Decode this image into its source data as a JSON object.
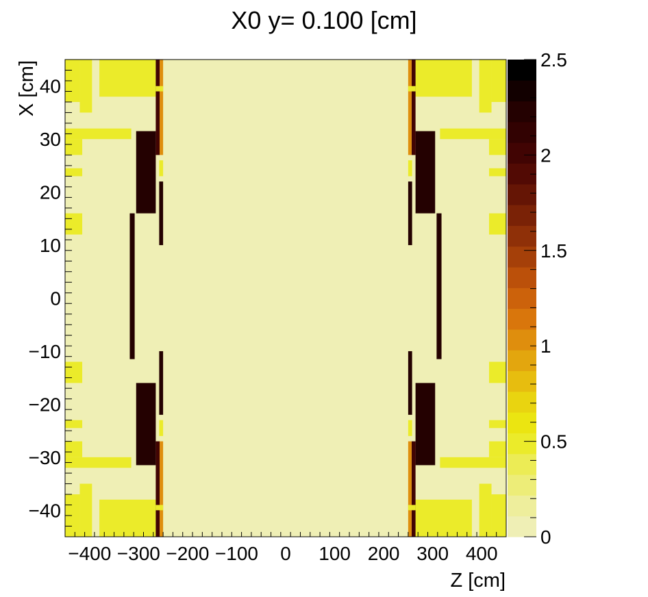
{
  "chart_data": {
    "type": "heatmap",
    "title": "X0 y=  0.100 [cm]",
    "xlabel": "Z [cm]",
    "ylabel": "X [cm]",
    "xlim": [
      -450,
      450
    ],
    "ylim": [
      -45,
      45
    ],
    "x_ticks": [
      -400,
      -300,
      -200,
      -100,
      0,
      100,
      200,
      300,
      400
    ],
    "x_tick_labels": [
      "−400",
      "−300",
      "−200",
      "−100",
      "0",
      "100",
      "200",
      "300",
      "400"
    ],
    "y_ticks": [
      -40,
      -30,
      -20,
      -10,
      0,
      10,
      20,
      30,
      40
    ],
    "y_tick_labels": [
      "−40",
      "−30",
      "−20",
      "−10",
      "0",
      "10",
      "20",
      "30",
      "40"
    ],
    "z_range": [
      0,
      2.5
    ],
    "z_ticks": [
      0,
      0.5,
      1,
      1.5,
      2,
      2.5
    ],
    "z_tick_labels": [
      "0",
      "0.5",
      "1",
      "1.5",
      "2",
      "2.5"
    ],
    "palette": [
      "#efefb5",
      "#eeee9c",
      "#eded78",
      "#ecec55",
      "#ebeb2a",
      "#ebe511",
      "#e9d410",
      "#e7bd0f",
      "#e3a60e",
      "#df8e0d",
      "#d9760c",
      "#cc620b",
      "#bb500a",
      "#a54009",
      "#8f3008",
      "#7a2206",
      "#651505",
      "#520a04",
      "#410403",
      "#320202",
      "#240101",
      "#120000",
      "#000000"
    ],
    "background_value": 0.1,
    "regions": [
      {
        "z": [
          -450,
          -420
        ],
        "x": [
          37,
          45
        ],
        "v": 0.45
      },
      {
        "z": [
          -420,
          -395
        ],
        "x": [
          35,
          45
        ],
        "v": 0.45
      },
      {
        "z": [
          -380,
          -265
        ],
        "x": [
          38,
          45
        ],
        "v": 0.45
      },
      {
        "z": [
          -450,
          -315
        ],
        "x": [
          30,
          32
        ],
        "v": 0.45
      },
      {
        "z": [
          -450,
          -415
        ],
        "x": [
          27,
          30
        ],
        "v": 0.45
      },
      {
        "z": [
          -450,
          -415
        ],
        "x": [
          23,
          24.5
        ],
        "v": 0.45
      },
      {
        "z": [
          -450,
          -415
        ],
        "x": [
          12,
          16
        ],
        "v": 0.45
      },
      {
        "z": [
          -305,
          -265
        ],
        "x": [
          16,
          31.5
        ],
        "v": 2.25
      },
      {
        "z": [
          -318,
          -308
        ],
        "x": [
          -11.5,
          16
        ],
        "v": 2.2
      },
      {
        "z": [
          -265,
          -257
        ],
        "x": [
          27,
          45
        ],
        "v": 2.0
      },
      {
        "z": [
          -257,
          -250
        ],
        "x": [
          27,
          45
        ],
        "v": 1.0
      },
      {
        "z": [
          -265,
          -250
        ],
        "x": [
          39,
          40
        ],
        "v": 0.5
      },
      {
        "z": [
          -258,
          -250
        ],
        "x": [
          10,
          22
        ],
        "v": 2.2
      },
      {
        "z": [
          -258,
          -250
        ],
        "x": [
          23,
          26
        ],
        "v": 0.45
      },
      {
        "z": [
          -450,
          -315
        ],
        "x": [
          -32,
          -30
        ],
        "v": 0.45
      },
      {
        "z": [
          -450,
          -415
        ],
        "x": [
          -30,
          -27
        ],
        "v": 0.45
      },
      {
        "z": [
          -450,
          -415
        ],
        "x": [
          -24.5,
          -23
        ],
        "v": 0.45
      },
      {
        "z": [
          -450,
          -415
        ],
        "x": [
          -16,
          -12
        ],
        "v": 0.45
      },
      {
        "z": [
          -450,
          -420
        ],
        "x": [
          -45,
          -37
        ],
        "v": 0.45
      },
      {
        "z": [
          -420,
          -395
        ],
        "x": [
          -45,
          -35
        ],
        "v": 0.45
      },
      {
        "z": [
          -380,
          -265
        ],
        "x": [
          -45,
          -38
        ],
        "v": 0.45
      },
      {
        "z": [
          -305,
          -265
        ],
        "x": [
          -31.5,
          -16
        ],
        "v": 2.25
      },
      {
        "z": [
          -265,
          -257
        ],
        "x": [
          -45,
          -27
        ],
        "v": 2.0
      },
      {
        "z": [
          -257,
          -250
        ],
        "x": [
          -45,
          -27
        ],
        "v": 1.0
      },
      {
        "z": [
          -265,
          -250
        ],
        "x": [
          -40,
          -39
        ],
        "v": 0.5
      },
      {
        "z": [
          -258,
          -250
        ],
        "x": [
          -22,
          -10
        ],
        "v": 2.2
      },
      {
        "z": [
          -258,
          -250
        ],
        "x": [
          -26,
          -23
        ],
        "v": 0.45
      },
      {
        "z": [
          420,
          450
        ],
        "x": [
          37,
          45
        ],
        "v": 0.45
      },
      {
        "z": [
          395,
          420
        ],
        "x": [
          35,
          45
        ],
        "v": 0.45
      },
      {
        "z": [
          265,
          380
        ],
        "x": [
          38,
          45
        ],
        "v": 0.45
      },
      {
        "z": [
          315,
          450
        ],
        "x": [
          30,
          32
        ],
        "v": 0.45
      },
      {
        "z": [
          415,
          450
        ],
        "x": [
          27,
          30
        ],
        "v": 0.45
      },
      {
        "z": [
          415,
          450
        ],
        "x": [
          23,
          24.5
        ],
        "v": 0.45
      },
      {
        "z": [
          415,
          450
        ],
        "x": [
          12,
          16
        ],
        "v": 0.45
      },
      {
        "z": [
          265,
          305
        ],
        "x": [
          16,
          31.5
        ],
        "v": 2.25
      },
      {
        "z": [
          308,
          318
        ],
        "x": [
          -11.5,
          16
        ],
        "v": 2.2
      },
      {
        "z": [
          257,
          265
        ],
        "x": [
          27,
          45
        ],
        "v": 2.0
      },
      {
        "z": [
          250,
          257
        ],
        "x": [
          27,
          45
        ],
        "v": 1.0
      },
      {
        "z": [
          250,
          265
        ],
        "x": [
          39,
          40
        ],
        "v": 0.5
      },
      {
        "z": [
          250,
          258
        ],
        "x": [
          10,
          22
        ],
        "v": 2.2
      },
      {
        "z": [
          250,
          258
        ],
        "x": [
          23,
          26
        ],
        "v": 0.45
      },
      {
        "z": [
          315,
          450
        ],
        "x": [
          -32,
          -30
        ],
        "v": 0.45
      },
      {
        "z": [
          415,
          450
        ],
        "x": [
          -30,
          -27
        ],
        "v": 0.45
      },
      {
        "z": [
          415,
          450
        ],
        "x": [
          -24.5,
          -23
        ],
        "v": 0.45
      },
      {
        "z": [
          415,
          450
        ],
        "x": [
          -16,
          -12
        ],
        "v": 0.45
      },
      {
        "z": [
          420,
          450
        ],
        "x": [
          -45,
          -37
        ],
        "v": 0.45
      },
      {
        "z": [
          395,
          420
        ],
        "x": [
          -45,
          -35
        ],
        "v": 0.45
      },
      {
        "z": [
          265,
          380
        ],
        "x": [
          -45,
          -38
        ],
        "v": 0.45
      },
      {
        "z": [
          265,
          305
        ],
        "x": [
          -31.5,
          -16
        ],
        "v": 2.25
      },
      {
        "z": [
          257,
          265
        ],
        "x": [
          -45,
          -27
        ],
        "v": 2.0
      },
      {
        "z": [
          250,
          257
        ],
        "x": [
          -45,
          -27
        ],
        "v": 1.0
      },
      {
        "z": [
          250,
          265
        ],
        "x": [
          -40,
          -39
        ],
        "v": 0.5
      },
      {
        "z": [
          250,
          258
        ],
        "x": [
          -22,
          -10
        ],
        "v": 2.2
      },
      {
        "z": [
          250,
          258
        ],
        "x": [
          -26,
          -23
        ],
        "v": 0.45
      }
    ]
  }
}
